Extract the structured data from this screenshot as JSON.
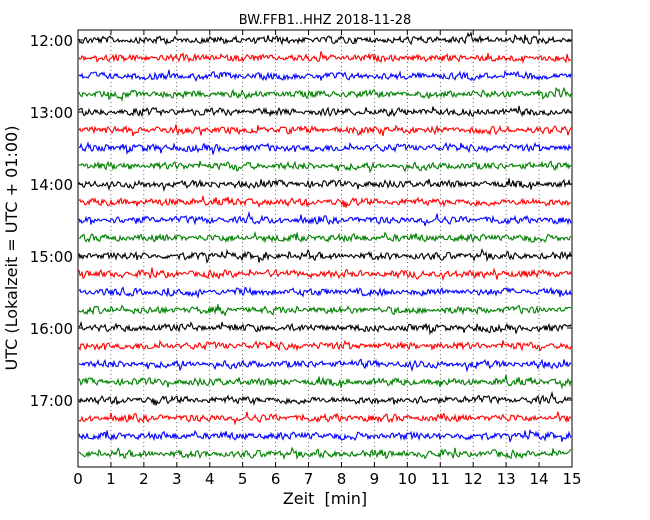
{
  "chart_data": {
    "type": "line",
    "title": "BW.FFB1..HHZ 2018-11-28",
    "xlabel": "Zeit  [min]",
    "ylabel": "UTC (Lokalzeit = UTC + 01:00)",
    "xlim": [
      0,
      15
    ],
    "x_ticks": [
      "0",
      "1",
      "2",
      "3",
      "4",
      "5",
      "6",
      "7",
      "8",
      "9",
      "10",
      "11",
      "12",
      "13",
      "14",
      "15"
    ],
    "y_ticks": [
      "12:00",
      "13:00",
      "14:00",
      "15:00",
      "16:00",
      "17:00"
    ],
    "trace_interval_min": 15,
    "start_time": "12:00",
    "grid": "vertical dotted lines at each minute",
    "trace_colors": [
      "#000000",
      "#ff0000",
      "#0000ff",
      "#008000"
    ],
    "series": [
      {
        "start": "12:00",
        "color": "#000000"
      },
      {
        "start": "12:15",
        "color": "#ff0000"
      },
      {
        "start": "12:30",
        "color": "#0000ff"
      },
      {
        "start": "12:45",
        "color": "#008000"
      },
      {
        "start": "13:00",
        "color": "#000000"
      },
      {
        "start": "13:15",
        "color": "#ff0000"
      },
      {
        "start": "13:30",
        "color": "#0000ff"
      },
      {
        "start": "13:45",
        "color": "#008000"
      },
      {
        "start": "14:00",
        "color": "#000000"
      },
      {
        "start": "14:15",
        "color": "#ff0000"
      },
      {
        "start": "14:30",
        "color": "#0000ff"
      },
      {
        "start": "14:45",
        "color": "#008000"
      },
      {
        "start": "15:00",
        "color": "#000000"
      },
      {
        "start": "15:15",
        "color": "#ff0000"
      },
      {
        "start": "15:30",
        "color": "#0000ff"
      },
      {
        "start": "15:45",
        "color": "#008000"
      },
      {
        "start": "16:00",
        "color": "#000000"
      },
      {
        "start": "16:15",
        "color": "#ff0000"
      },
      {
        "start": "16:30",
        "color": "#0000ff"
      },
      {
        "start": "16:45",
        "color": "#008000"
      },
      {
        "start": "17:00",
        "color": "#000000"
      },
      {
        "start": "17:15",
        "color": "#ff0000"
      },
      {
        "start": "17:30",
        "color": "#0000ff"
      },
      {
        "start": "17:45",
        "color": "#008000"
      }
    ]
  }
}
